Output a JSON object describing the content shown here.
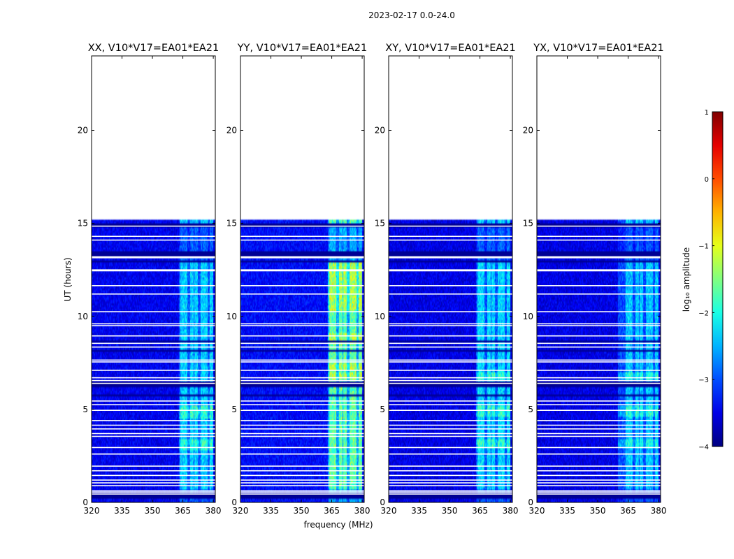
{
  "figure": {
    "suptitle": "2023-02-17 0.0-24.0"
  },
  "chart_data": {
    "type": "heatmap",
    "description_units": {
      "x": "MHz",
      "y": "hours",
      "color": "log10 amplitude"
    },
    "xlabel": "frequency (MHz)",
    "ylabel": "UT (hours)",
    "xlim": [
      320,
      381
    ],
    "ylim": [
      0,
      24
    ],
    "x_ticks": [
      320,
      335,
      350,
      365,
      380
    ],
    "x_tick_labels": [
      "320",
      "335",
      "350",
      "365",
      "380"
    ],
    "y_ticks": [
      0,
      5,
      10,
      15,
      20
    ],
    "y_tick_labels": [
      "0",
      "5",
      "10",
      "15",
      "20"
    ],
    "data_extent_hours": [
      0,
      15.2
    ],
    "blank_rows_hours": [
      0.45,
      0.55,
      0.62,
      0.9,
      1.05,
      1.2,
      1.45,
      1.7,
      1.95,
      2.6,
      2.95,
      3.55,
      3.7,
      3.95,
      4.15,
      4.4,
      4.95,
      5.25,
      5.45,
      6.4,
      6.55,
      6.7,
      7.1,
      7.55,
      7.65,
      8.35,
      8.55,
      8.95,
      9.5,
      9.6,
      10.25,
      11.2,
      11.65,
      12.45,
      12.5,
      13.15,
      13.2,
      14.1,
      14.3,
      14.85
    ],
    "dark_rows_hours": [
      0.2,
      0.3,
      0.5,
      5.8,
      6.0,
      6.25,
      6.35,
      6.45,
      8.2,
      8.7,
      9.2,
      9.4,
      13.0,
      13.25,
      13.4,
      13.45,
      13.5,
      14.9
    ],
    "bright_band_mhz": [
      363,
      381
    ],
    "bright_columns_mhz": [
      364.5,
      366.2,
      369.5,
      371.5,
      374.5,
      376.2,
      379.2
    ],
    "colorbar": {
      "label": "log₁₀ amplitude",
      "min": -4,
      "max": 1,
      "ticks": [
        1,
        0,
        -1,
        -2,
        -3,
        -4
      ],
      "tick_labels": [
        "1",
        "0",
        "−1",
        "−2",
        "−3",
        "−4"
      ],
      "colormap": "jet"
    },
    "panels": [
      {
        "title": "XX, V10*V17=EA01*EA21",
        "base_log": -3.45,
        "band_boost": 1.15,
        "band_start_mhz": 363,
        "strong_rows": [
          [
            2.8,
            3.4
          ],
          [
            4.5,
            5.2
          ]
        ]
      },
      {
        "title": "YY, V10*V17=EA01*EA21",
        "base_log": -3.35,
        "band_boost": 1.75,
        "band_start_mhz": 363,
        "strong_rows": [
          [
            6.6,
            6.95
          ],
          [
            7.1,
            7.5
          ],
          [
            8.5,
            9.1
          ],
          [
            10.3,
            12.9
          ]
        ]
      },
      {
        "title": "XY, V10*V17=EA01*EA21",
        "base_log": -3.5,
        "band_boost": 1.25,
        "band_start_mhz": 363,
        "strong_rows": [
          [
            6.6,
            6.95
          ],
          [
            4.6,
            5.2
          ],
          [
            2.9,
            3.4
          ]
        ]
      },
      {
        "title": "YX, V10*V17=EA01*EA21",
        "base_log": -3.5,
        "band_boost": 1.15,
        "band_start_mhz": 360,
        "strong_rows": [
          [
            6.6,
            6.95
          ],
          [
            4.6,
            5.2
          ],
          [
            2.9,
            3.4
          ]
        ]
      }
    ]
  }
}
